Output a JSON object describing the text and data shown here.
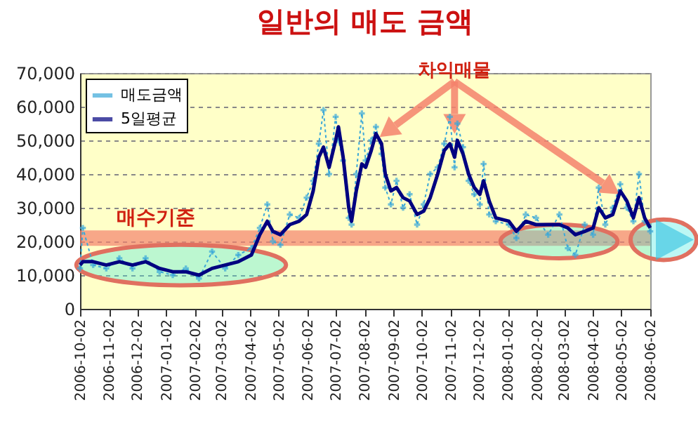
{
  "chart_data": {
    "type": "line",
    "title": "일반의 매도 금액",
    "x": [
      "2006-10-02",
      "2006-10-05",
      "2006-10-16",
      "2006-10-30",
      "2006-11-13",
      "2006-11-27",
      "2006-12-11",
      "2006-12-26",
      "2007-01-09",
      "2007-01-23",
      "2007-02-06",
      "2007-02-20",
      "2007-03-06",
      "2007-03-20",
      "2007-04-03",
      "2007-04-12",
      "2007-04-20",
      "2007-04-26",
      "2007-05-04",
      "2007-05-14",
      "2007-05-24",
      "2007-06-01",
      "2007-06-08",
      "2007-06-14",
      "2007-06-19",
      "2007-06-25",
      "2007-07-02",
      "2007-07-05",
      "2007-07-10",
      "2007-07-16",
      "2007-07-19",
      "2007-07-24",
      "2007-07-30",
      "2007-08-03",
      "2007-08-09",
      "2007-08-14",
      "2007-08-20",
      "2007-08-24",
      "2007-08-30",
      "2007-09-05",
      "2007-09-12",
      "2007-09-19",
      "2007-09-27",
      "2007-10-04",
      "2007-10-11",
      "2007-10-19",
      "2007-10-26",
      "2007-11-01",
      "2007-11-06",
      "2007-11-09",
      "2007-11-15",
      "2007-11-21",
      "2007-11-27",
      "2007-12-03",
      "2007-12-07",
      "2007-12-13",
      "2007-12-20",
      "2008-01-03",
      "2008-01-11",
      "2008-01-21",
      "2008-02-01",
      "2008-02-14",
      "2008-02-26",
      "2008-03-06",
      "2008-03-14",
      "2008-03-24",
      "2008-04-02",
      "2008-04-08",
      "2008-04-15",
      "2008-04-23",
      "2008-05-01",
      "2008-05-08",
      "2008-05-15",
      "2008-05-21",
      "2008-05-27",
      "2008-06-02"
    ],
    "series": [
      {
        "name": "매도금액",
        "color": "#3aa8d8",
        "line_style": "dotted",
        "marker": "cross",
        "values": [
          12000,
          24000,
          13000,
          12000,
          15000,
          12000,
          15000,
          11000,
          10000,
          12000,
          9000,
          17000,
          12000,
          16000,
          18000,
          24000,
          31000,
          20000,
          19000,
          28000,
          27000,
          33000,
          38000,
          49000,
          59000,
          40000,
          57000,
          50000,
          44000,
          27000,
          25000,
          40000,
          58000,
          44000,
          50000,
          54000,
          46000,
          36000,
          31000,
          38000,
          30000,
          34000,
          25000,
          31000,
          40000,
          42000,
          49000,
          57000,
          42000,
          55000,
          48000,
          38000,
          34000,
          31000,
          43000,
          28000,
          26000,
          25000,
          21000,
          28000,
          27000,
          22000,
          28000,
          18000,
          16000,
          25000,
          22000,
          36000,
          25000,
          30000,
          37000,
          30000,
          26000,
          40000,
          26000,
          23000
        ]
      },
      {
        "name": "5일평균",
        "color": "#000080",
        "line_style": "solid",
        "marker": "none",
        "values": [
          13000,
          14000,
          14000,
          13000,
          14000,
          13000,
          14000,
          12000,
          11000,
          11000,
          10000,
          12000,
          13000,
          14000,
          16000,
          22000,
          26000,
          23000,
          22000,
          25000,
          26000,
          28000,
          35000,
          45000,
          48000,
          42000,
          50000,
          54000,
          45000,
          30000,
          26000,
          35000,
          43000,
          42000,
          47000,
          52000,
          49000,
          40000,
          35000,
          36000,
          33000,
          32000,
          28000,
          29000,
          33000,
          40000,
          47000,
          49000,
          45000,
          50000,
          46000,
          40000,
          36000,
          34000,
          38000,
          32000,
          27000,
          26000,
          23000,
          26000,
          25000,
          25000,
          25000,
          24000,
          22000,
          23000,
          24000,
          30000,
          27000,
          28000,
          35000,
          32000,
          27000,
          33000,
          27000,
          24000
        ]
      }
    ],
    "xlim": [
      "2006-10-02",
      "2008-06-02"
    ],
    "xticks": [
      "2006-10-02",
      "2006-11-02",
      "2006-12-02",
      "2007-01-02",
      "2007-02-02",
      "2007-03-02",
      "2007-04-02",
      "2007-05-02",
      "2007-06-02",
      "2007-07-02",
      "2007-08-02",
      "2007-09-02",
      "2007-10-02",
      "2007-11-02",
      "2007-12-02",
      "2008-01-02",
      "2008-02-02",
      "2008-03-02",
      "2008-04-02",
      "2008-05-02",
      "2008-06-02"
    ],
    "ylim": [
      0,
      70000
    ],
    "yticks": [
      0,
      {
        "value": 10000,
        "label": "10,000"
      },
      {
        "value": 20000,
        "label": "20,000"
      },
      {
        "value": 30000,
        "label": "30,000"
      },
      {
        "value": 40000,
        "label": "40,000"
      },
      {
        "value": 50000,
        "label": "50,000"
      },
      {
        "value": 60000,
        "label": "60,000"
      },
      {
        "value": 70000,
        "label": "70,000"
      }
    ],
    "grid": "y",
    "legend": "top left",
    "ref_lines": [
      {
        "axis": "y",
        "value": 21000,
        "label": "매수기준",
        "color": "#f4826c"
      }
    ],
    "annotations": [
      {
        "text": "차익매물",
        "x": "2007-11-06",
        "y": 52000
      }
    ]
  }
}
